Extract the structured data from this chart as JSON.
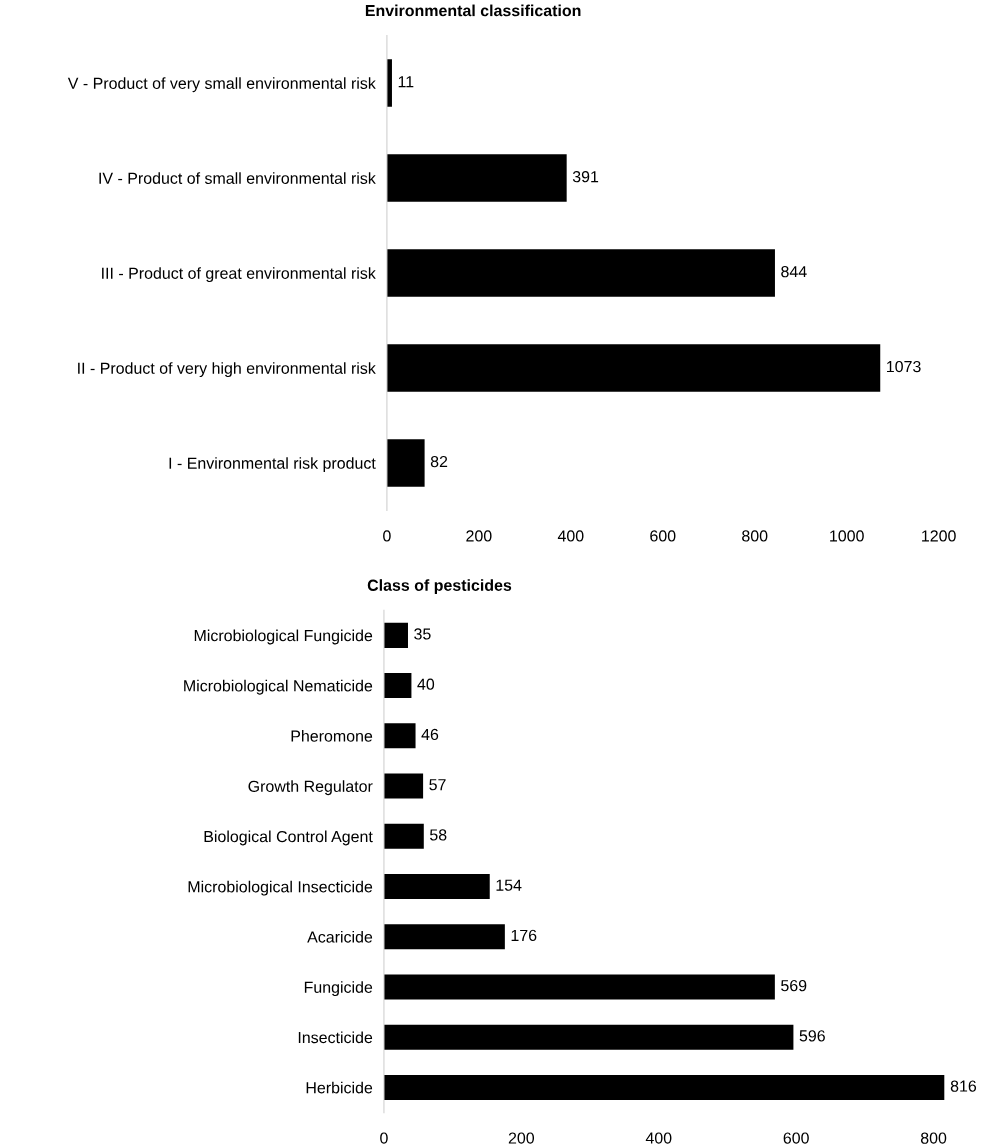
{
  "chart_data": [
    {
      "type": "bar",
      "orientation": "horizontal",
      "title": "Environmental classification",
      "categories": [
        "V - Product of very small environmental risk",
        "IV - Product of small environmental risk",
        "III - Product of great environmental risk",
        "II - Product of very high environmental risk",
        "I - Environmental risk product"
      ],
      "values": [
        11,
        391,
        844,
        1073,
        82
      ],
      "color": "#000000",
      "xlim": [
        0,
        1200
      ],
      "xticks": [
        0,
        200,
        400,
        600,
        800,
        1000,
        1200
      ],
      "data_labels": true,
      "grid": false,
      "legend": false
    },
    {
      "type": "bar",
      "orientation": "horizontal",
      "title": "Class of pesticides",
      "categories": [
        "Microbiological Fungicide",
        "Microbiological Nematicide",
        "Pheromone",
        "Growth Regulator",
        "Biological Control Agent",
        "Microbiological Insecticide",
        "Acaricide",
        "Fungicide",
        "Insecticide",
        "Herbicide"
      ],
      "values": [
        35,
        40,
        46,
        57,
        58,
        154,
        176,
        569,
        596,
        816
      ],
      "color": "#000000",
      "xlim": [
        0,
        816
      ],
      "xticks": [
        0,
        200,
        400,
        600,
        800
      ],
      "data_labels": true,
      "grid": false,
      "legend": false
    }
  ]
}
